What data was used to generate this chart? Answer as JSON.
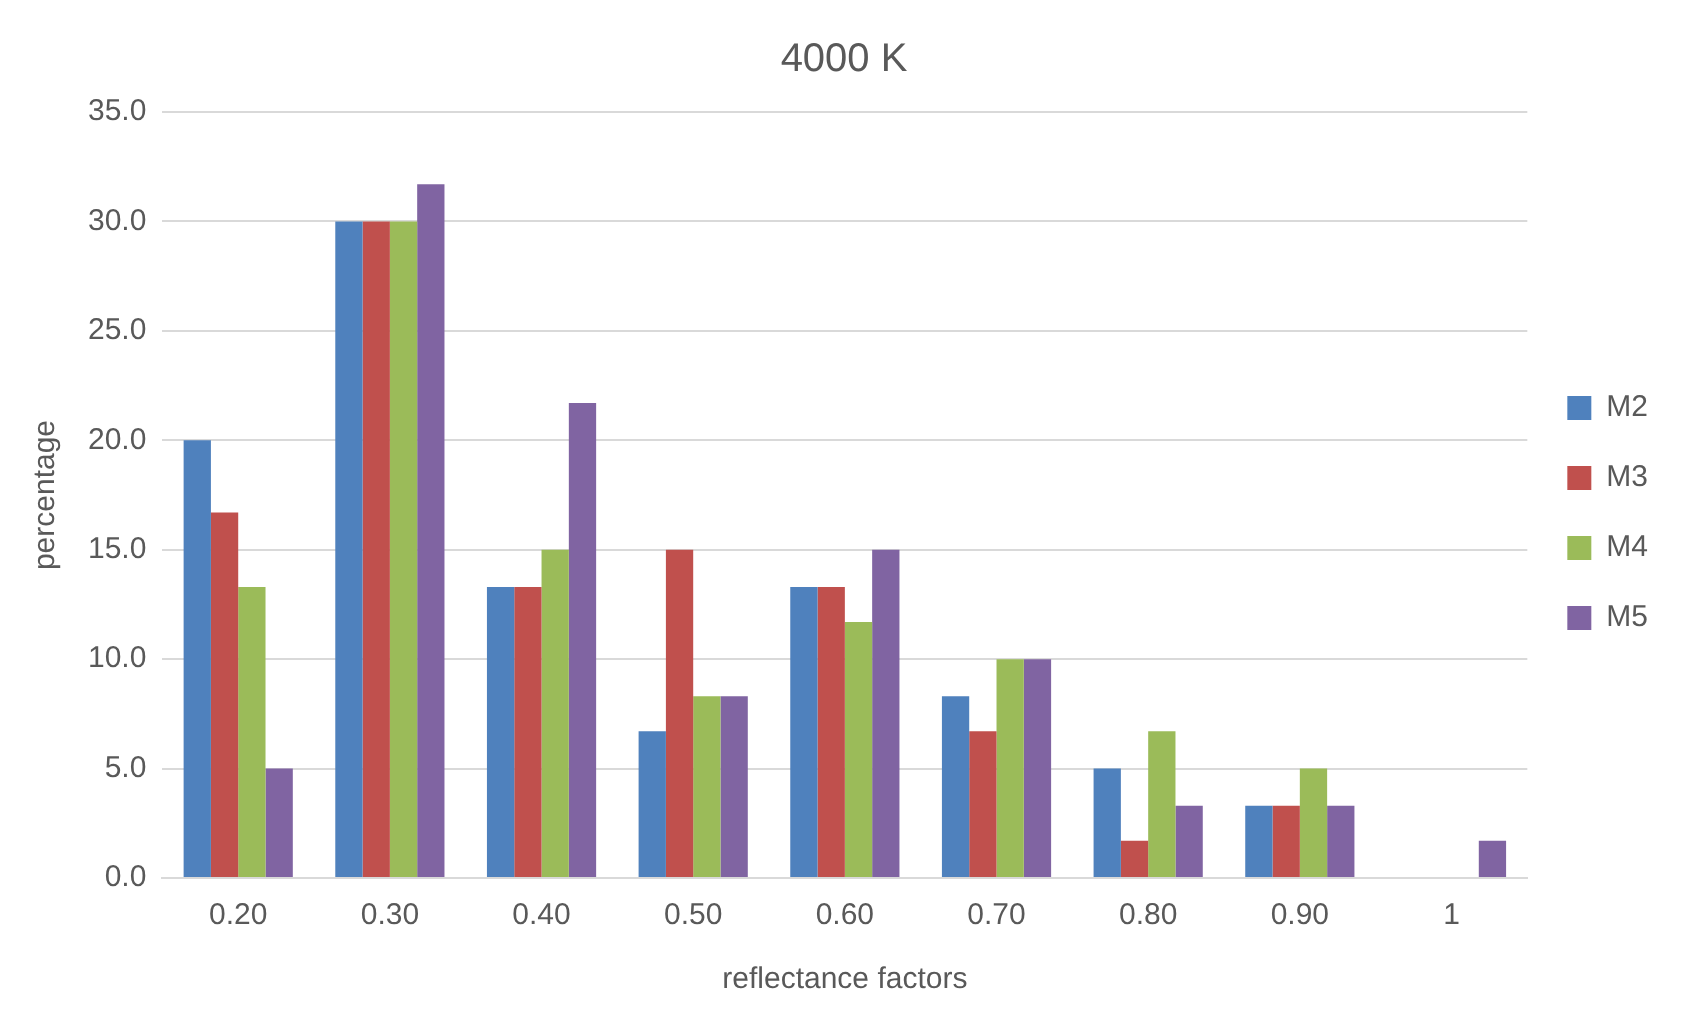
{
  "chart_data": {
    "type": "bar",
    "title": "4000 K",
    "xlabel": "reflectance factors",
    "ylabel": "percentage",
    "categories": [
      "0.20",
      "0.30",
      "0.40",
      "0.50",
      "0.60",
      "0.70",
      "0.80",
      "0.90",
      "1"
    ],
    "series": [
      {
        "name": "M2",
        "color": "#4f81bd",
        "values": [
          20.0,
          30.0,
          13.3,
          6.7,
          13.3,
          8.3,
          5.0,
          3.3,
          0
        ]
      },
      {
        "name": "M3",
        "color": "#c0504d",
        "values": [
          16.7,
          30.0,
          13.3,
          15.0,
          13.3,
          6.7,
          1.7,
          3.3,
          0
        ]
      },
      {
        "name": "M4",
        "color": "#9bbb59",
        "values": [
          13.3,
          30.0,
          15.0,
          8.3,
          11.7,
          10.0,
          6.7,
          5.0,
          0
        ]
      },
      {
        "name": "M5",
        "color": "#8064a2",
        "values": [
          5.0,
          31.7,
          21.7,
          8.3,
          15.0,
          10.0,
          3.3,
          3.3,
          1.7
        ]
      }
    ],
    "ylim": [
      0,
      35
    ],
    "yticks": [
      {
        "value": 0,
        "label": "0.0"
      },
      {
        "value": 5,
        "label": "5.0"
      },
      {
        "value": 10,
        "label": "10.0"
      },
      {
        "value": 15,
        "label": "15.0"
      },
      {
        "value": 20,
        "label": "20.0"
      },
      {
        "value": 25,
        "label": "25.0"
      },
      {
        "value": 30,
        "label": "30.0"
      },
      {
        "value": 35,
        "label": "35.0"
      }
    ],
    "grid": "y",
    "legend": "right"
  }
}
